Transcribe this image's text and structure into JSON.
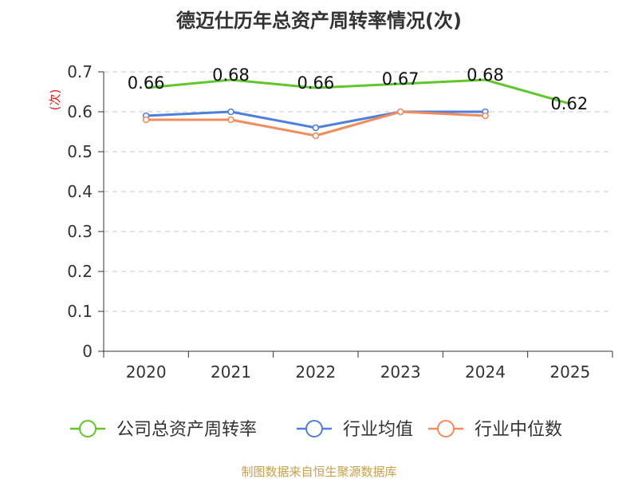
{
  "chart_data": {
    "type": "line",
    "title": "德迈仕历年总资产周转率情况(次)",
    "ylabel": "(次)",
    "xlabel": "",
    "categories": [
      "2020",
      "2021",
      "2022",
      "2023",
      "2024",
      "2025"
    ],
    "ylim": [
      0,
      0.7
    ],
    "yticks": [
      "0",
      "0.1",
      "0.2",
      "0.3",
      "0.4",
      "0.5",
      "0.6",
      "0.7"
    ],
    "grid": true,
    "legend_position": "bottom",
    "series": [
      {
        "name": "公司总资产周转率",
        "color": "#5fc72a",
        "values": [
          0.66,
          0.68,
          0.66,
          0.67,
          0.68,
          0.62
        ],
        "labels": [
          "0.66",
          "0.68",
          "0.66",
          "0.67",
          "0.68",
          "0.62"
        ],
        "show_markers": false
      },
      {
        "name": "行业均值",
        "color": "#4f7fdc",
        "values": [
          0.59,
          0.6,
          0.56,
          0.6,
          0.6,
          null
        ],
        "show_markers": true
      },
      {
        "name": "行业中位数",
        "color": "#f28c5a",
        "values": [
          0.58,
          0.58,
          0.54,
          0.6,
          0.59,
          null
        ],
        "show_markers": true
      }
    ],
    "source": "制图数据来自恒生聚源数据库"
  }
}
